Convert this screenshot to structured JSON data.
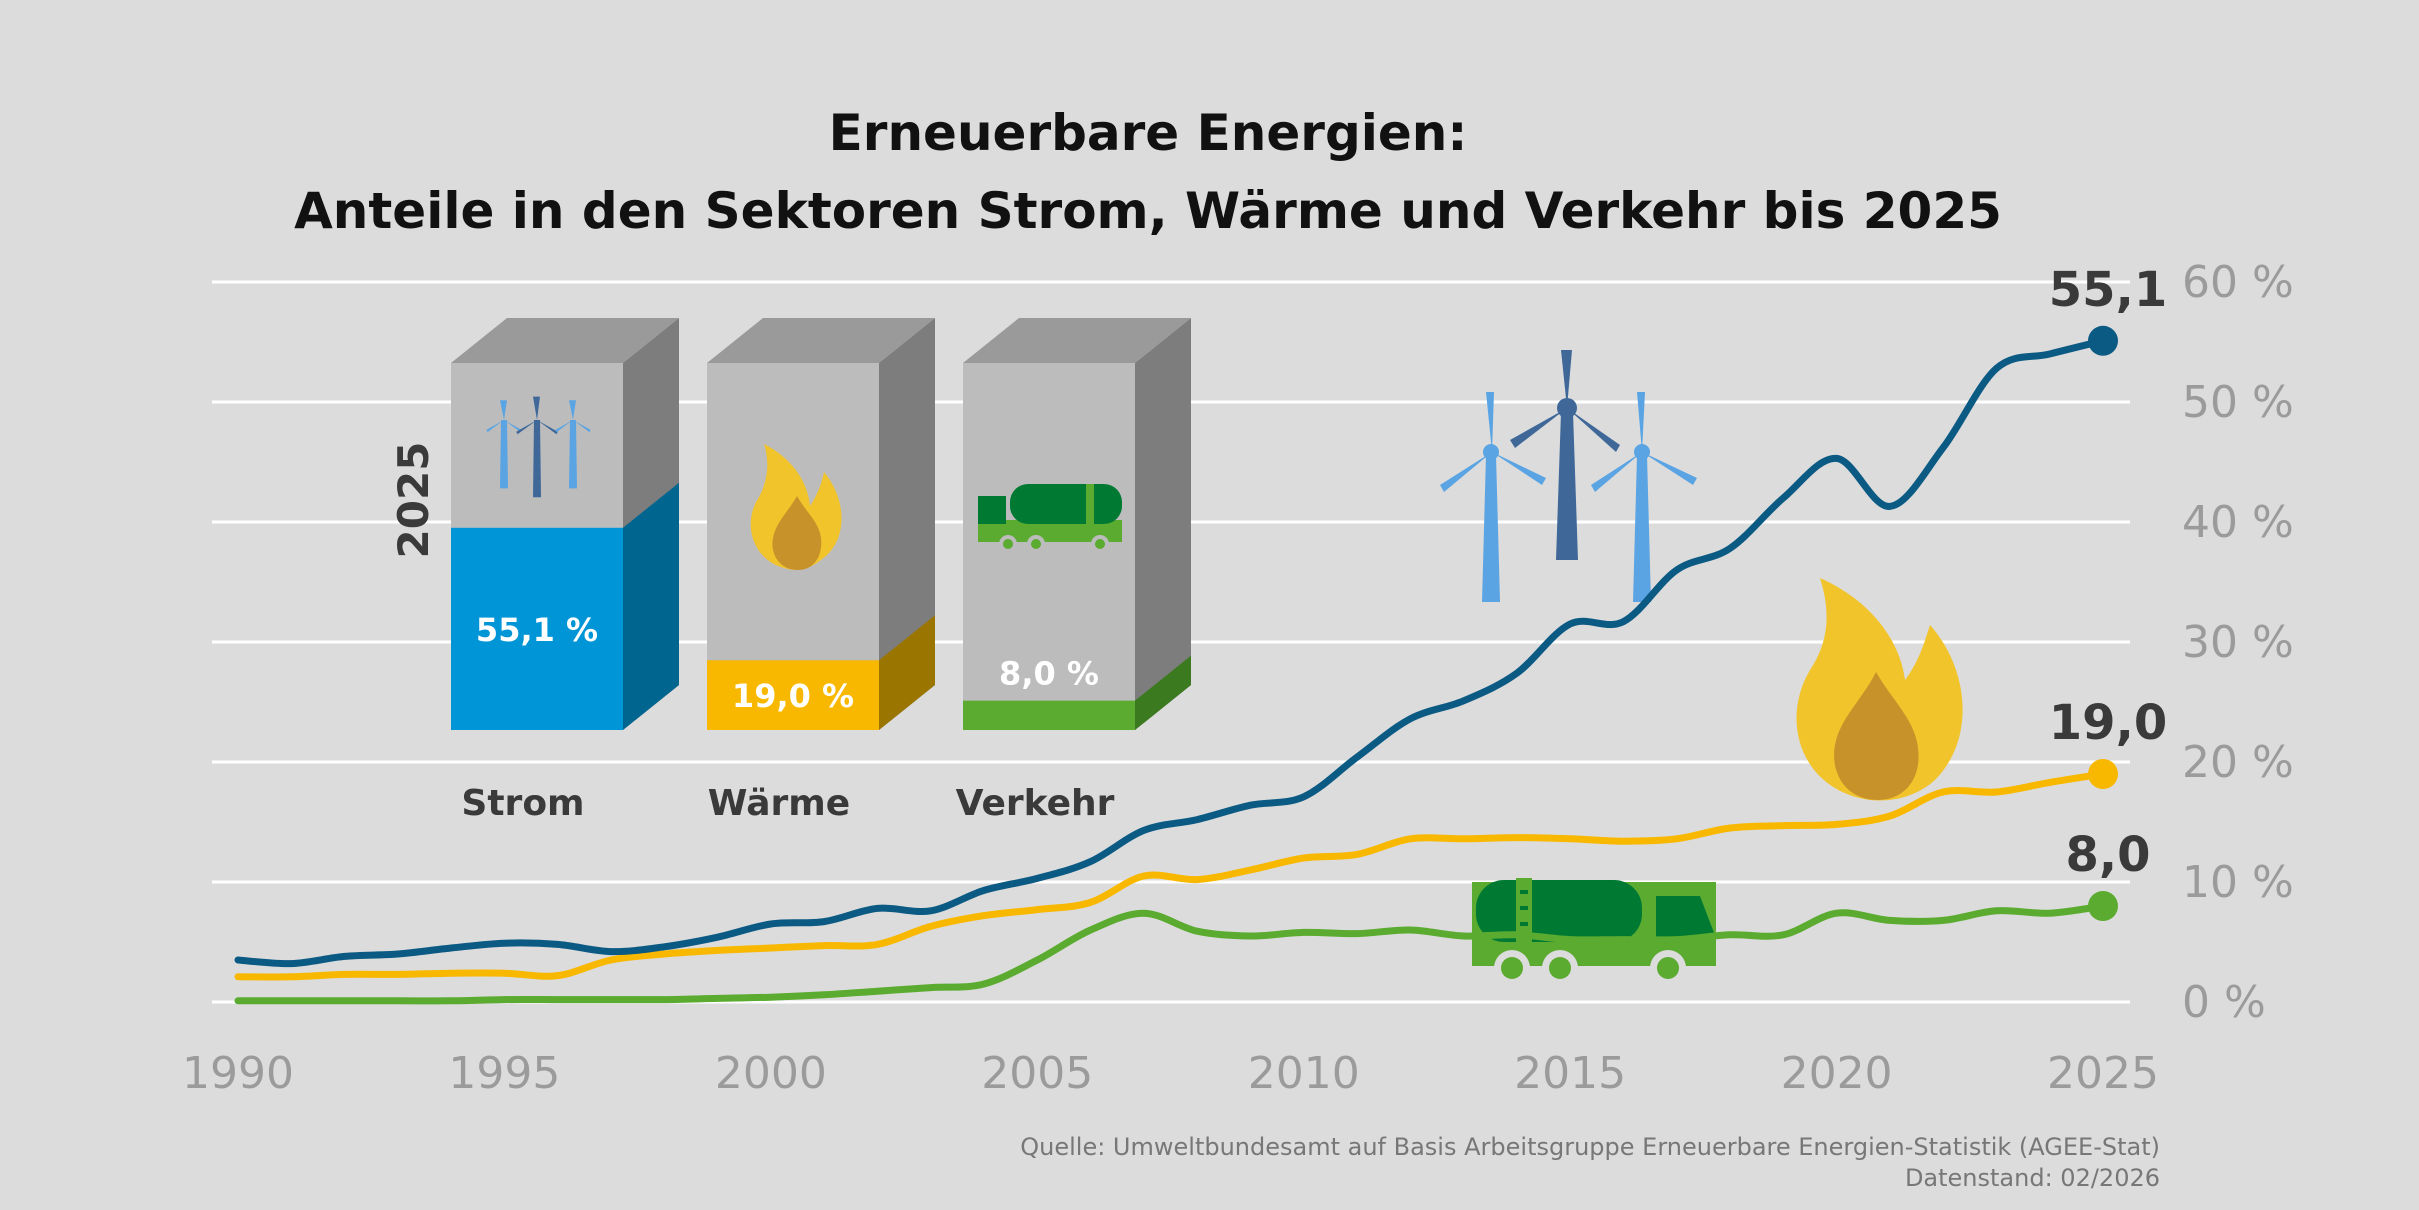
{
  "colors": {
    "strom": "#0b5a83",
    "waerme": "#f9b800",
    "verkehr": "#5aab2f",
    "strom_bar": "#0095d6",
    "grid": "#ffffff",
    "bar_bg": "#bcbcbc"
  },
  "icons": [
    "wind-turbine-icon",
    "flame-icon",
    "tanker-truck-icon"
  ],
  "footer": {
    "source": "Quelle: Umweltbundesamt auf Basis Arbeitsgruppe Erneuerbare Energien-Statistik (AGEE-Stat)",
    "stand": "Datenstand: 02/2026"
  },
  "chart_data": {
    "type": "line",
    "title_line1": "Erneuerbare Energien:",
    "title_line2": "Anteile in den Sektoren Strom, Wärme und Verkehr bis 2025",
    "x": [
      1990,
      1991,
      1992,
      1993,
      1994,
      1995,
      1996,
      1997,
      1998,
      1999,
      2000,
      2001,
      2002,
      2003,
      2004,
      2005,
      2006,
      2007,
      2008,
      2009,
      2010,
      2011,
      2012,
      2013,
      2014,
      2015,
      2016,
      2017,
      2018,
      2019,
      2020,
      2021,
      2022,
      2023,
      2024,
      2025
    ],
    "x_ticks": [
      "1990",
      "1995",
      "2000",
      "2005",
      "2010",
      "2015",
      "2020",
      "2025"
    ],
    "y_ticks": [
      "0 %",
      "10 %",
      "20 %",
      "30 %",
      "40 %",
      "50 %",
      "60 %"
    ],
    "xlim": [
      1990,
      2025
    ],
    "ylim": [
      0,
      60
    ],
    "grid": true,
    "series": [
      {
        "name": "Strom",
        "end_label": "55,1",
        "values": [
          3.5,
          3.2,
          3.8,
          4.0,
          4.5,
          4.9,
          4.8,
          4.2,
          4.6,
          5.4,
          6.5,
          6.7,
          7.8,
          7.6,
          9.3,
          10.3,
          11.7,
          14.3,
          15.2,
          16.4,
          17.1,
          20.4,
          23.6,
          25.1,
          27.4,
          31.5,
          31.7,
          36.0,
          37.8,
          42.0,
          45.3,
          41.3,
          46.2,
          52.8,
          54.0,
          55.1
        ]
      },
      {
        "name": "Wärme",
        "end_label": "19,0",
        "values": [
          2.1,
          2.1,
          2.3,
          2.3,
          2.4,
          2.4,
          2.2,
          3.5,
          4.0,
          4.3,
          4.5,
          4.7,
          4.8,
          6.3,
          7.2,
          7.7,
          8.3,
          10.5,
          10.2,
          11.0,
          12.0,
          12.3,
          13.6,
          13.6,
          13.7,
          13.6,
          13.4,
          13.6,
          14.5,
          14.7,
          14.8,
          15.5,
          17.5,
          17.5,
          18.3,
          19.0
        ]
      },
      {
        "name": "Verkehr",
        "end_label": "8,0",
        "values": [
          0.1,
          0.1,
          0.1,
          0.1,
          0.1,
          0.2,
          0.2,
          0.2,
          0.2,
          0.3,
          0.4,
          0.6,
          0.9,
          1.2,
          1.5,
          3.5,
          6.0,
          7.4,
          5.9,
          5.5,
          5.8,
          5.7,
          6.0,
          5.5,
          5.6,
          5.2,
          5.2,
          5.2,
          5.6,
          5.6,
          7.4,
          6.8,
          6.8,
          7.6,
          7.4,
          8.0
        ]
      }
    ],
    "inset": {
      "year_label": "2025",
      "bars": [
        {
          "name": "Strom",
          "value": 55.1,
          "value_label": "55,1 %"
        },
        {
          "name": "Wärme",
          "value": 19.0,
          "value_label": "19,0 %"
        },
        {
          "name": "Verkehr",
          "value": 8.0,
          "value_label": "8,0 %"
        }
      ]
    }
  }
}
